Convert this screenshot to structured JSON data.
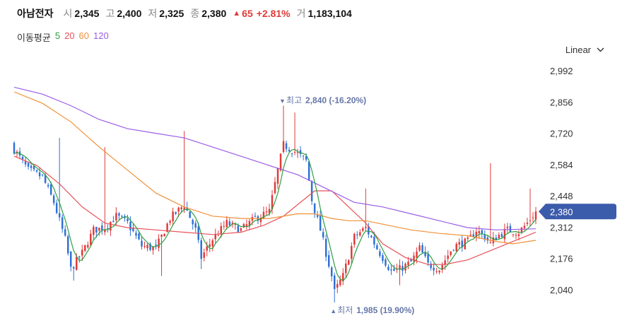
{
  "stock": {
    "name": "아남전자",
    "open_label": "시",
    "open": "2,345",
    "high_label": "고",
    "high": "2,400",
    "low_label": "저",
    "low": "2,325",
    "close_label": "종",
    "close": "2,380",
    "change": "65",
    "change_pct": "+2.81%",
    "volume_label": "거",
    "volume": "1,183,104"
  },
  "moving_avg": {
    "title": "이동평균",
    "periods": [
      {
        "label": "5",
        "color": "#2ea043"
      },
      {
        "label": "20",
        "color": "#e8525a"
      },
      {
        "label": "60",
        "color": "#f0913a"
      },
      {
        "label": "120",
        "color": "#9b5de5"
      }
    ]
  },
  "scale": {
    "label": "Linear"
  },
  "colors": {
    "up": "#e03a3a",
    "down": "#2f6fd6",
    "current_tag": "#3b5bab",
    "annotation": "#6677a8"
  },
  "chart_data": {
    "type": "candlestick",
    "yticks": [
      2992,
      2856,
      2720,
      2584,
      2448,
      2312,
      2176,
      2040
    ],
    "ylim": [
      1980,
      3020
    ],
    "current": 2380,
    "annotations": [
      {
        "kind": "high",
        "label": "최고",
        "value": "2,840",
        "pct": "(-16.20%)",
        "index": 95
      },
      {
        "kind": "low",
        "label": "최저",
        "value": "1,985",
        "pct": "(19.90%)",
        "index": 113
      }
    ],
    "anchors": [
      [
        0,
        2650
      ],
      [
        5,
        2560
      ],
      [
        10,
        2530
      ],
      [
        14,
        2420
      ],
      [
        18,
        2260
      ],
      [
        20,
        2130
      ],
      [
        24,
        2200
      ],
      [
        28,
        2300
      ],
      [
        32,
        2310
      ],
      [
        36,
        2360
      ],
      [
        40,
        2330
      ],
      [
        45,
        2230
      ],
      [
        50,
        2220
      ],
      [
        55,
        2350
      ],
      [
        60,
        2410
      ],
      [
        64,
        2300
      ],
      [
        66,
        2180
      ],
      [
        70,
        2260
      ],
      [
        75,
        2330
      ],
      [
        80,
        2300
      ],
      [
        85,
        2350
      ],
      [
        90,
        2380
      ],
      [
        93,
        2560
      ],
      [
        95,
        2670
      ],
      [
        99,
        2640
      ],
      [
        103,
        2600
      ],
      [
        105,
        2430
      ],
      [
        108,
        2300
      ],
      [
        112,
        2100
      ],
      [
        113,
        2030
      ],
      [
        116,
        2100
      ],
      [
        120,
        2270
      ],
      [
        124,
        2310
      ],
      [
        128,
        2220
      ],
      [
        133,
        2120
      ],
      [
        136,
        2130
      ],
      [
        140,
        2160
      ],
      [
        143,
        2220
      ],
      [
        146,
        2150
      ],
      [
        150,
        2130
      ],
      [
        155,
        2230
      ],
      [
        160,
        2250
      ],
      [
        163,
        2300
      ],
      [
        166,
        2270
      ],
      [
        168,
        2240
      ],
      [
        170,
        2270
      ],
      [
        174,
        2300
      ],
      [
        178,
        2290
      ],
      [
        181,
        2330
      ],
      [
        184,
        2380
      ]
    ],
    "spikes": [
      {
        "i": 16,
        "high": 2700
      },
      {
        "i": 32,
        "high": 2660
      },
      {
        "i": 60,
        "high": 2730
      },
      {
        "i": 95,
        "high": 2840
      },
      {
        "i": 99,
        "high": 2810
      },
      {
        "i": 124,
        "high": 2480
      },
      {
        "i": 168,
        "high": 2590
      },
      {
        "i": 182,
        "high": 2480
      }
    ],
    "dips": [
      {
        "i": 21,
        "low": 2080
      },
      {
        "i": 52,
        "low": 2100
      },
      {
        "i": 66,
        "low": 2130
      },
      {
        "i": 113,
        "low": 1985
      },
      {
        "i": 136,
        "low": 2060
      }
    ],
    "ma_lines": [
      {
        "period": "20",
        "color": "#e8525a",
        "points": [
          [
            0,
            2620
          ],
          [
            8,
            2580
          ],
          [
            16,
            2500
          ],
          [
            24,
            2400
          ],
          [
            32,
            2330
          ],
          [
            40,
            2310
          ],
          [
            50,
            2300
          ],
          [
            60,
            2290
          ],
          [
            70,
            2280
          ],
          [
            80,
            2290
          ],
          [
            88,
            2320
          ],
          [
            95,
            2360
          ],
          [
            100,
            2410
          ],
          [
            106,
            2470
          ],
          [
            112,
            2470
          ],
          [
            118,
            2400
          ],
          [
            124,
            2330
          ],
          [
            130,
            2240
          ],
          [
            138,
            2180
          ],
          [
            146,
            2150
          ],
          [
            152,
            2150
          ],
          [
            160,
            2170
          ],
          [
            168,
            2210
          ],
          [
            176,
            2250
          ],
          [
            184,
            2290
          ]
        ]
      },
      {
        "period": "60",
        "color": "#f0913a",
        "points": [
          [
            0,
            2900
          ],
          [
            10,
            2850
          ],
          [
            20,
            2770
          ],
          [
            30,
            2660
          ],
          [
            40,
            2560
          ],
          [
            50,
            2460
          ],
          [
            60,
            2400
          ],
          [
            70,
            2360
          ],
          [
            80,
            2350
          ],
          [
            90,
            2350
          ],
          [
            100,
            2370
          ],
          [
            106,
            2370
          ],
          [
            112,
            2350
          ],
          [
            118,
            2340
          ],
          [
            124,
            2340
          ],
          [
            132,
            2320
          ],
          [
            140,
            2300
          ],
          [
            150,
            2285
          ],
          [
            160,
            2275
          ],
          [
            170,
            2250
          ],
          [
            176,
            2240
          ],
          [
            184,
            2255
          ]
        ]
      },
      {
        "period": "120",
        "color": "#9b5de5",
        "points": [
          [
            0,
            2920
          ],
          [
            10,
            2890
          ],
          [
            20,
            2840
          ],
          [
            30,
            2780
          ],
          [
            40,
            2740
          ],
          [
            50,
            2720
          ],
          [
            60,
            2700
          ],
          [
            70,
            2660
          ],
          [
            80,
            2620
          ],
          [
            90,
            2580
          ],
          [
            100,
            2540
          ],
          [
            110,
            2480
          ],
          [
            120,
            2420
          ],
          [
            130,
            2400
          ],
          [
            140,
            2370
          ],
          [
            150,
            2340
          ],
          [
            160,
            2310
          ],
          [
            170,
            2300
          ],
          [
            184,
            2305
          ]
        ]
      }
    ]
  }
}
